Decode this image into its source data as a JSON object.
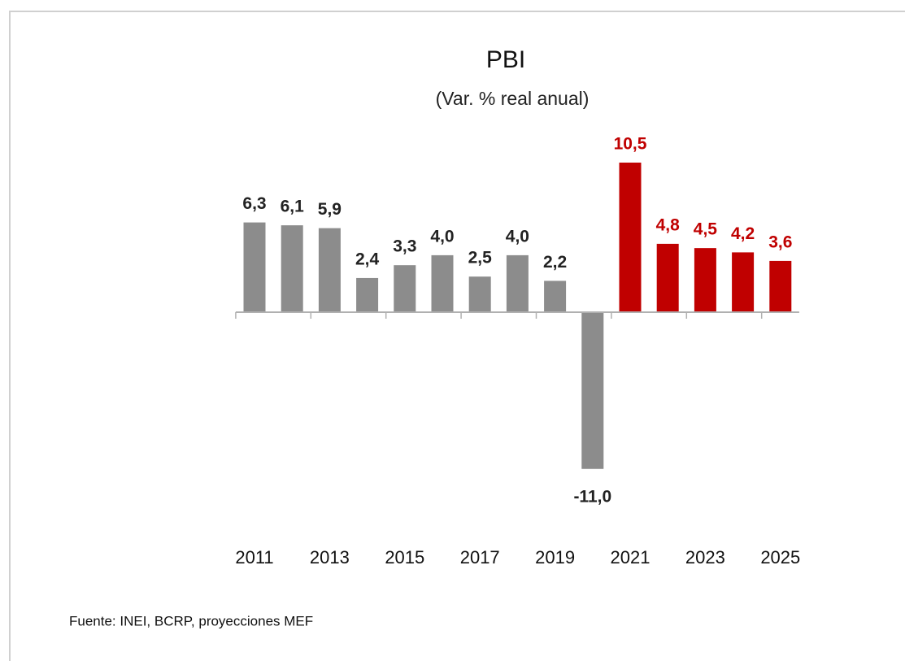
{
  "chart_data": {
    "type": "bar",
    "title": "PBI",
    "subtitle": "(Var. % real anual)",
    "source": "Fuente: INEI, BCRP, proyecciones MEF",
    "categories": [
      "2011",
      null,
      "2013",
      null,
      "2015",
      null,
      "2017",
      null,
      "2019",
      null,
      "2021",
      null,
      "2023",
      null,
      "2025"
    ],
    "values": [
      6.3,
      6.1,
      5.9,
      2.4,
      3.3,
      4.0,
      2.5,
      4.0,
      2.2,
      -11.0,
      10.5,
      4.8,
      4.5,
      4.2,
      3.6
    ],
    "value_labels": [
      "6,3",
      "6,1",
      "5,9",
      "2,4",
      "3,3",
      "4,0",
      "2,5",
      "4,0",
      "2,2",
      "-11,0",
      "10,5",
      "4,8",
      "4,5",
      "4,2",
      "3,6"
    ],
    "colors": [
      "#8c8c8c",
      "#8c8c8c",
      "#8c8c8c",
      "#8c8c8c",
      "#8c8c8c",
      "#8c8c8c",
      "#8c8c8c",
      "#8c8c8c",
      "#8c8c8c",
      "#8c8c8c",
      "#c00000",
      "#c00000",
      "#c00000",
      "#c00000",
      "#c00000"
    ],
    "label_colors": [
      "#222222",
      "#222222",
      "#222222",
      "#222222",
      "#222222",
      "#222222",
      "#222222",
      "#222222",
      "#222222",
      "#222222",
      "#c00000",
      "#c00000",
      "#c00000",
      "#c00000",
      "#c00000"
    ]
  }
}
